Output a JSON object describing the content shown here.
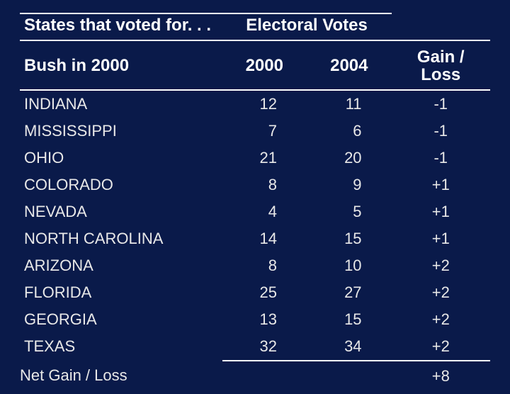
{
  "background_color": "#0a1a4a",
  "text_color": "#e8e8e8",
  "header_color": "#ffffff",
  "rule_color": "#ffffff",
  "font_family": "Arial",
  "header_fontsize_pt": 24,
  "row_fontsize_pt": 22,
  "table": {
    "header": {
      "top_left": "States that voted for. . .",
      "electoral_votes": "Electoral Votes",
      "subheader_left": "Bush in 2000",
      "col_2000": "2000",
      "col_2004": "2004",
      "gain_loss": "Gain / Loss"
    },
    "columns": [
      "state",
      "votes_2000",
      "votes_2004",
      "gain_loss"
    ],
    "column_align": [
      "left",
      "right",
      "right",
      "center"
    ],
    "column_widths_pct": [
      43,
      18,
      18,
      21
    ],
    "rows": [
      {
        "state": "INDIANA",
        "votes_2000": "12",
        "votes_2004": "11",
        "gain_loss": "-1"
      },
      {
        "state": "MISSISSIPPI",
        "votes_2000": "7",
        "votes_2004": "6",
        "gain_loss": "-1"
      },
      {
        "state": "OHIO",
        "votes_2000": "21",
        "votes_2004": "20",
        "gain_loss": "-1"
      },
      {
        "state": "COLORADO",
        "votes_2000": "8",
        "votes_2004": "9",
        "gain_loss": "+1"
      },
      {
        "state": "NEVADA",
        "votes_2000": "4",
        "votes_2004": "5",
        "gain_loss": "+1"
      },
      {
        "state": "NORTH CAROLINA",
        "votes_2000": "14",
        "votes_2004": "15",
        "gain_loss": "+1"
      },
      {
        "state": "ARIZONA",
        "votes_2000": "8",
        "votes_2004": "10",
        "gain_loss": "+2"
      },
      {
        "state": "FLORIDA",
        "votes_2000": "25",
        "votes_2004": "27",
        "gain_loss": "+2"
      },
      {
        "state": "GEORGIA",
        "votes_2000": "13",
        "votes_2004": "15",
        "gain_loss": "+2"
      },
      {
        "state": "TEXAS",
        "votes_2000": "32",
        "votes_2004": "34",
        "gain_loss": "+2"
      }
    ],
    "net": {
      "label": "Net Gain / Loss",
      "value": "+8"
    }
  }
}
